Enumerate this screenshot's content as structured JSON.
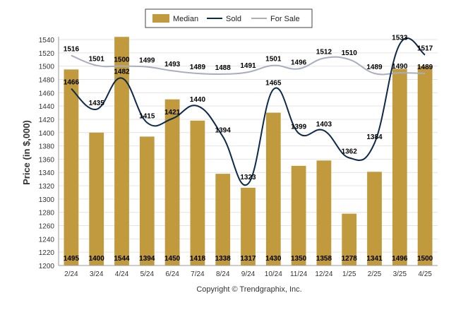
{
  "chart_data": {
    "type": "bar",
    "categories": [
      "2/24",
      "3/24",
      "4/24",
      "5/24",
      "6/24",
      "7/24",
      "8/24",
      "9/24",
      "10/24",
      "11/24",
      "12/24",
      "1/25",
      "2/25",
      "3/25",
      "4/25"
    ],
    "series": [
      {
        "name": "Median",
        "type": "bar",
        "color": "#C09A3D",
        "values": [
          1495,
          1400,
          1544,
          1394,
          1450,
          1418,
          1338,
          1317,
          1430,
          1350,
          1358,
          1278,
          1341,
          1496,
          1500
        ]
      },
      {
        "name": "Sold",
        "type": "line",
        "color": "#0D2A4A",
        "values": [
          1466,
          1435,
          1482,
          1415,
          1421,
          1440,
          1394,
          1323,
          1465,
          1399,
          1403,
          1362,
          1384,
          1533,
          1517
        ]
      },
      {
        "name": "For Sale",
        "type": "line",
        "color": "#A8AEC0",
        "values": [
          1516,
          1501,
          1500,
          1499,
          1493,
          1489,
          1488,
          1491,
          1501,
          1496,
          1512,
          1510,
          1489,
          1490,
          1489
        ]
      }
    ],
    "ylabel": "Price (in $,000)",
    "ylim": [
      1200,
      1540
    ],
    "yticks": [
      1200,
      1220,
      1240,
      1260,
      1280,
      1300,
      1320,
      1340,
      1360,
      1380,
      1400,
      1420,
      1440,
      1460,
      1480,
      1500,
      1520,
      1540
    ],
    "grid": true,
    "legend_position": "top-center"
  },
  "legend": {
    "median": "Median",
    "sold": "Sold",
    "for_sale": "For Sale"
  },
  "footer": {
    "copyright": "Copyright © Trendgraphix, Inc."
  }
}
